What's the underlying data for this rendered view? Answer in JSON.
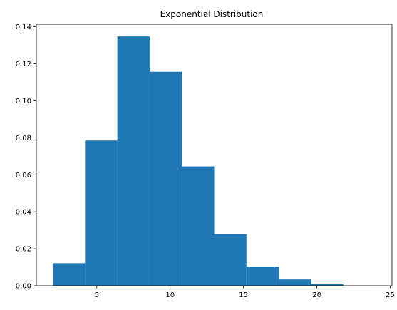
{
  "chart_data": {
    "type": "bar",
    "title": "Exponential Distribution",
    "xlabel": "",
    "ylabel": "",
    "xlim": [
      0.88,
      25.12
    ],
    "ylim": [
      0,
      0.1414
    ],
    "bins": [
      {
        "x0": 2.0,
        "x1": 4.2,
        "value": 0.0122
      },
      {
        "x0": 4.2,
        "x1": 6.4,
        "value": 0.0785
      },
      {
        "x0": 6.4,
        "x1": 8.6,
        "value": 0.1348
      },
      {
        "x0": 8.6,
        "x1": 10.8,
        "value": 0.1157
      },
      {
        "x0": 10.8,
        "x1": 13.0,
        "value": 0.0645
      },
      {
        "x0": 13.0,
        "x1": 15.2,
        "value": 0.0279
      },
      {
        "x0": 15.2,
        "x1": 17.4,
        "value": 0.0104
      },
      {
        "x0": 17.4,
        "x1": 19.6,
        "value": 0.0034
      },
      {
        "x0": 19.6,
        "x1": 21.8,
        "value": 0.0008
      },
      {
        "x0": 21.8,
        "x1": 24.0,
        "value": 0.0001
      }
    ],
    "xticks": [
      5,
      10,
      15,
      20,
      25
    ],
    "yticks": [
      "0.00",
      "0.02",
      "0.04",
      "0.06",
      "0.08",
      "0.10",
      "0.12",
      "0.14"
    ],
    "grid": false,
    "bar_color": "#1f77b4"
  }
}
